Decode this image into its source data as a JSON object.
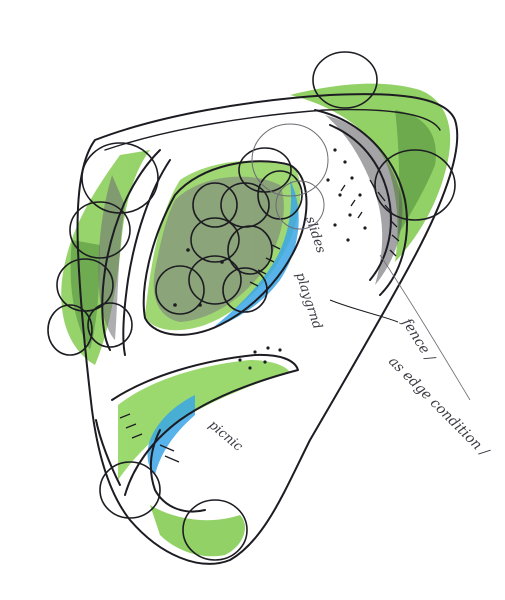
{
  "drawing": {
    "labels": {
      "slides": "slides",
      "playground": "playgrnd",
      "fence": "fence /",
      "edge_condition": "as edge condition /",
      "picnic": "picnic"
    }
  },
  "colors": {
    "paper": "#ffffff",
    "ink": "#1c1c22",
    "green_crayon": "#7fc94a",
    "dark_green": "#4f8a3a",
    "gray_pencil": "#6c6c72",
    "blue_crayon": "#39a6e6"
  }
}
